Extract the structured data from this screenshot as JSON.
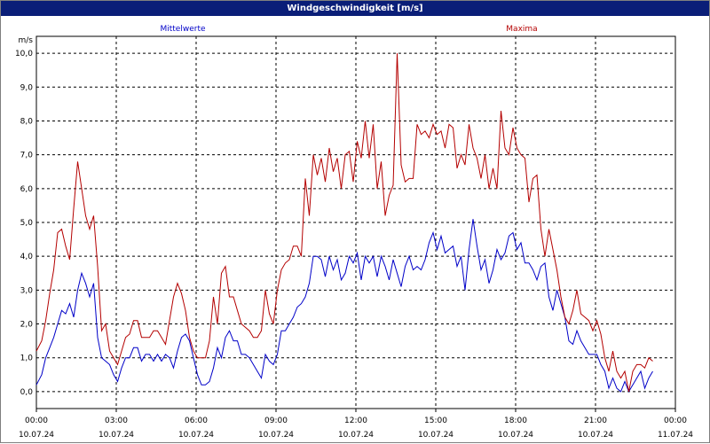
{
  "window": {
    "title": "Windgeschwindigkeit [m/s]"
  },
  "chart_data": {
    "type": "line",
    "title": "Windgeschwindigkeit [m/s]",
    "ylabel": "m/s",
    "ylim": [
      -0.5,
      10.5
    ],
    "xlim": [
      0,
      24
    ],
    "grid": true,
    "legend": {
      "placement": "top",
      "entries": [
        "Mittelwerte",
        "Maxima"
      ]
    },
    "y_ticks": [
      "0,0",
      "1,0",
      "2,0",
      "3,0",
      "4,0",
      "5,0",
      "6,0",
      "7,0",
      "8,0",
      "9,0",
      "10,0"
    ],
    "x_ticks": [
      {
        "time": "00:00",
        "date": "10.07.24"
      },
      {
        "time": "03:00",
        "date": "10.07.24"
      },
      {
        "time": "06:00",
        "date": "10.07.24"
      },
      {
        "time": "09:00",
        "date": "10.07.24"
      },
      {
        "time": "12:00",
        "date": "10.07.24"
      },
      {
        "time": "15:00",
        "date": "10.07.24"
      },
      {
        "time": "18:00",
        "date": "10.07.24"
      },
      {
        "time": "21:00",
        "date": "10.07.24"
      },
      {
        "time": "00:00",
        "date": "11.07.24"
      }
    ],
    "series": [
      {
        "name": "Mittelwerte",
        "color": "#0000c8",
        "points": [
          [
            0.0,
            0.2
          ],
          [
            0.2,
            0.5
          ],
          [
            0.35,
            1.0
          ],
          [
            0.5,
            1.3
          ],
          [
            0.65,
            1.6
          ],
          [
            0.8,
            2.0
          ],
          [
            0.95,
            2.4
          ],
          [
            1.1,
            2.3
          ],
          [
            1.25,
            2.6
          ],
          [
            1.4,
            2.2
          ],
          [
            1.55,
            3.0
          ],
          [
            1.7,
            3.5
          ],
          [
            1.85,
            3.2
          ],
          [
            2.0,
            2.8
          ],
          [
            2.15,
            3.2
          ],
          [
            2.3,
            1.6
          ],
          [
            2.45,
            1.0
          ],
          [
            2.6,
            0.9
          ],
          [
            2.75,
            0.8
          ],
          [
            2.9,
            0.5
          ],
          [
            3.05,
            0.3
          ],
          [
            3.2,
            0.7
          ],
          [
            3.35,
            1.0
          ],
          [
            3.5,
            1.0
          ],
          [
            3.65,
            1.3
          ],
          [
            3.8,
            1.3
          ],
          [
            3.95,
            0.9
          ],
          [
            4.1,
            1.1
          ],
          [
            4.25,
            1.1
          ],
          [
            4.4,
            0.9
          ],
          [
            4.55,
            1.1
          ],
          [
            4.7,
            0.9
          ],
          [
            4.85,
            1.1
          ],
          [
            5.0,
            1.0
          ],
          [
            5.15,
            0.7
          ],
          [
            5.3,
            1.2
          ],
          [
            5.45,
            1.6
          ],
          [
            5.6,
            1.7
          ],
          [
            5.75,
            1.5
          ],
          [
            5.9,
            1.0
          ],
          [
            6.05,
            0.5
          ],
          [
            6.2,
            0.2
          ],
          [
            6.35,
            0.2
          ],
          [
            6.5,
            0.3
          ],
          [
            6.65,
            0.7
          ],
          [
            6.8,
            1.3
          ],
          [
            6.95,
            1.0
          ],
          [
            7.1,
            1.6
          ],
          [
            7.25,
            1.8
          ],
          [
            7.4,
            1.5
          ],
          [
            7.55,
            1.5
          ],
          [
            7.7,
            1.1
          ],
          [
            7.85,
            1.1
          ],
          [
            8.0,
            1.0
          ],
          [
            8.15,
            0.8
          ],
          [
            8.3,
            0.6
          ],
          [
            8.45,
            0.4
          ],
          [
            8.6,
            1.1
          ],
          [
            8.75,
            0.9
          ],
          [
            8.9,
            0.8
          ],
          [
            9.05,
            1.1
          ],
          [
            9.2,
            1.8
          ],
          [
            9.35,
            1.8
          ],
          [
            9.5,
            2.0
          ],
          [
            9.65,
            2.2
          ],
          [
            9.8,
            2.5
          ],
          [
            9.95,
            2.6
          ],
          [
            10.1,
            2.8
          ],
          [
            10.25,
            3.2
          ],
          [
            10.4,
            4.0
          ],
          [
            10.55,
            4.0
          ],
          [
            10.7,
            3.9
          ],
          [
            10.85,
            3.4
          ],
          [
            11.0,
            4.0
          ],
          [
            11.15,
            3.6
          ],
          [
            11.3,
            3.9
          ],
          [
            11.45,
            3.3
          ],
          [
            11.6,
            3.5
          ],
          [
            11.75,
            4.0
          ],
          [
            11.9,
            3.8
          ],
          [
            12.05,
            4.1
          ],
          [
            12.2,
            3.3
          ],
          [
            12.35,
            4.0
          ],
          [
            12.5,
            3.8
          ],
          [
            12.65,
            4.0
          ],
          [
            12.8,
            3.4
          ],
          [
            12.95,
            4.0
          ],
          [
            13.1,
            3.7
          ],
          [
            13.25,
            3.3
          ],
          [
            13.4,
            3.9
          ],
          [
            13.55,
            3.5
          ],
          [
            13.7,
            3.1
          ],
          [
            13.85,
            3.7
          ],
          [
            14.0,
            4.0
          ],
          [
            14.15,
            3.6
          ],
          [
            14.3,
            3.7
          ],
          [
            14.45,
            3.6
          ],
          [
            14.6,
            3.9
          ],
          [
            14.75,
            4.4
          ],
          [
            14.9,
            4.7
          ],
          [
            15.05,
            4.2
          ],
          [
            15.2,
            4.6
          ],
          [
            15.35,
            4.1
          ],
          [
            15.5,
            4.2
          ],
          [
            15.65,
            4.3
          ],
          [
            15.8,
            3.7
          ],
          [
            15.95,
            4.0
          ],
          [
            16.1,
            3.0
          ],
          [
            16.25,
            4.2
          ],
          [
            16.4,
            5.1
          ],
          [
            16.55,
            4.3
          ],
          [
            16.7,
            3.6
          ],
          [
            16.85,
            3.9
          ],
          [
            17.0,
            3.2
          ],
          [
            17.15,
            3.6
          ],
          [
            17.3,
            4.2
          ],
          [
            17.45,
            3.9
          ],
          [
            17.6,
            4.1
          ],
          [
            17.75,
            4.6
          ],
          [
            17.9,
            4.7
          ],
          [
            18.05,
            4.2
          ],
          [
            18.2,
            4.4
          ],
          [
            18.35,
            3.8
          ],
          [
            18.5,
            3.8
          ],
          [
            18.65,
            3.6
          ],
          [
            18.8,
            3.3
          ],
          [
            18.95,
            3.7
          ],
          [
            19.1,
            3.8
          ],
          [
            19.25,
            2.8
          ],
          [
            19.4,
            2.4
          ],
          [
            19.55,
            3.0
          ],
          [
            19.7,
            2.6
          ],
          [
            19.85,
            2.2
          ],
          [
            20.0,
            1.5
          ],
          [
            20.15,
            1.4
          ],
          [
            20.3,
            1.8
          ],
          [
            20.45,
            1.5
          ],
          [
            20.6,
            1.3
          ],
          [
            20.75,
            1.1
          ],
          [
            20.9,
            1.1
          ],
          [
            21.05,
            1.1
          ],
          [
            21.2,
            0.8
          ],
          [
            21.35,
            0.6
          ],
          [
            21.5,
            0.1
          ],
          [
            21.65,
            0.4
          ],
          [
            21.8,
            0.1
          ],
          [
            21.95,
            0.0
          ],
          [
            22.1,
            0.3
          ],
          [
            22.25,
            0.0
          ],
          [
            22.4,
            0.2
          ],
          [
            22.55,
            0.4
          ],
          [
            22.7,
            0.6
          ],
          [
            22.85,
            0.1
          ],
          [
            23.0,
            0.4
          ],
          [
            23.15,
            0.6
          ]
        ]
      },
      {
        "name": "Maxima",
        "color": "#b40000",
        "points": [
          [
            0.0,
            1.2
          ],
          [
            0.2,
            1.5
          ],
          [
            0.35,
            2.1
          ],
          [
            0.5,
            2.9
          ],
          [
            0.65,
            3.6
          ],
          [
            0.8,
            4.7
          ],
          [
            0.95,
            4.8
          ],
          [
            1.1,
            4.3
          ],
          [
            1.25,
            3.9
          ],
          [
            1.4,
            5.4
          ],
          [
            1.55,
            6.8
          ],
          [
            1.7,
            6.0
          ],
          [
            1.85,
            5.2
          ],
          [
            2.0,
            4.8
          ],
          [
            2.15,
            5.2
          ],
          [
            2.3,
            3.7
          ],
          [
            2.45,
            1.8
          ],
          [
            2.6,
            2.0
          ],
          [
            2.75,
            1.2
          ],
          [
            2.9,
            1.0
          ],
          [
            3.05,
            0.8
          ],
          [
            3.2,
            1.2
          ],
          [
            3.35,
            1.6
          ],
          [
            3.5,
            1.7
          ],
          [
            3.65,
            2.1
          ],
          [
            3.8,
            2.1
          ],
          [
            3.95,
            1.6
          ],
          [
            4.1,
            1.6
          ],
          [
            4.25,
            1.6
          ],
          [
            4.4,
            1.8
          ],
          [
            4.55,
            1.8
          ],
          [
            4.7,
            1.6
          ],
          [
            4.85,
            1.4
          ],
          [
            5.0,
            2.1
          ],
          [
            5.15,
            2.8
          ],
          [
            5.3,
            3.2
          ],
          [
            5.45,
            2.9
          ],
          [
            5.6,
            2.4
          ],
          [
            5.75,
            1.6
          ],
          [
            5.9,
            1.2
          ],
          [
            6.05,
            1.0
          ],
          [
            6.2,
            1.0
          ],
          [
            6.35,
            1.0
          ],
          [
            6.5,
            1.5
          ],
          [
            6.65,
            2.8
          ],
          [
            6.8,
            2.0
          ],
          [
            6.95,
            3.5
          ],
          [
            7.1,
            3.7
          ],
          [
            7.25,
            2.8
          ],
          [
            7.4,
            2.8
          ],
          [
            7.55,
            2.4
          ],
          [
            7.7,
            2.0
          ],
          [
            7.85,
            1.9
          ],
          [
            8.0,
            1.8
          ],
          [
            8.15,
            1.6
          ],
          [
            8.3,
            1.6
          ],
          [
            8.45,
            1.8
          ],
          [
            8.6,
            3.0
          ],
          [
            8.75,
            2.3
          ],
          [
            8.9,
            2.0
          ],
          [
            9.05,
            3.0
          ],
          [
            9.2,
            3.6
          ],
          [
            9.35,
            3.8
          ],
          [
            9.5,
            3.9
          ],
          [
            9.65,
            4.3
          ],
          [
            9.8,
            4.3
          ],
          [
            9.95,
            4.0
          ],
          [
            10.1,
            6.3
          ],
          [
            10.25,
            5.2
          ],
          [
            10.4,
            7.0
          ],
          [
            10.55,
            6.4
          ],
          [
            10.7,
            6.9
          ],
          [
            10.85,
            6.2
          ],
          [
            11.0,
            7.2
          ],
          [
            11.15,
            6.5
          ],
          [
            11.3,
            6.9
          ],
          [
            11.45,
            6.0
          ],
          [
            11.6,
            7.0
          ],
          [
            11.75,
            7.1
          ],
          [
            11.9,
            6.2
          ],
          [
            12.05,
            7.4
          ],
          [
            12.2,
            6.9
          ],
          [
            12.35,
            8.0
          ],
          [
            12.5,
            6.9
          ],
          [
            12.65,
            7.9
          ],
          [
            12.8,
            6.0
          ],
          [
            12.95,
            6.8
          ],
          [
            13.1,
            5.2
          ],
          [
            13.25,
            5.8
          ],
          [
            13.4,
            6.1
          ],
          [
            13.55,
            10.0
          ],
          [
            13.7,
            6.7
          ],
          [
            13.85,
            6.2
          ],
          [
            14.0,
            6.3
          ],
          [
            14.15,
            6.3
          ],
          [
            14.3,
            7.9
          ],
          [
            14.45,
            7.6
          ],
          [
            14.6,
            7.7
          ],
          [
            14.75,
            7.5
          ],
          [
            14.9,
            7.9
          ],
          [
            15.05,
            7.6
          ],
          [
            15.2,
            7.7
          ],
          [
            15.35,
            7.2
          ],
          [
            15.5,
            7.9
          ],
          [
            15.65,
            7.8
          ],
          [
            15.8,
            6.6
          ],
          [
            15.95,
            7.0
          ],
          [
            16.1,
            6.7
          ],
          [
            16.25,
            7.9
          ],
          [
            16.4,
            7.2
          ],
          [
            16.55,
            6.9
          ],
          [
            16.7,
            6.3
          ],
          [
            16.85,
            7.0
          ],
          [
            17.0,
            6.0
          ],
          [
            17.15,
            6.6
          ],
          [
            17.3,
            6.0
          ],
          [
            17.45,
            8.3
          ],
          [
            17.6,
            7.2
          ],
          [
            17.75,
            7.0
          ],
          [
            17.9,
            7.8
          ],
          [
            18.05,
            7.2
          ],
          [
            18.2,
            7.0
          ],
          [
            18.35,
            6.9
          ],
          [
            18.5,
            5.6
          ],
          [
            18.65,
            6.3
          ],
          [
            18.8,
            6.4
          ],
          [
            18.95,
            4.8
          ],
          [
            19.1,
            4.0
          ],
          [
            19.25,
            4.8
          ],
          [
            19.4,
            4.2
          ],
          [
            19.55,
            3.6
          ],
          [
            19.7,
            2.8
          ],
          [
            19.85,
            2.2
          ],
          [
            20.0,
            2.0
          ],
          [
            20.15,
            2.4
          ],
          [
            20.3,
            3.0
          ],
          [
            20.45,
            2.3
          ],
          [
            20.6,
            2.2
          ],
          [
            20.75,
            2.1
          ],
          [
            20.9,
            1.8
          ],
          [
            21.05,
            2.1
          ],
          [
            21.2,
            1.7
          ],
          [
            21.35,
            1.0
          ],
          [
            21.5,
            0.6
          ],
          [
            21.65,
            1.2
          ],
          [
            21.8,
            0.6
          ],
          [
            21.95,
            0.4
          ],
          [
            22.1,
            0.6
          ],
          [
            22.25,
            0.0
          ],
          [
            22.4,
            0.6
          ],
          [
            22.55,
            0.8
          ],
          [
            22.7,
            0.8
          ],
          [
            22.85,
            0.7
          ],
          [
            23.0,
            1.0
          ],
          [
            23.15,
            0.9
          ]
        ]
      }
    ]
  }
}
